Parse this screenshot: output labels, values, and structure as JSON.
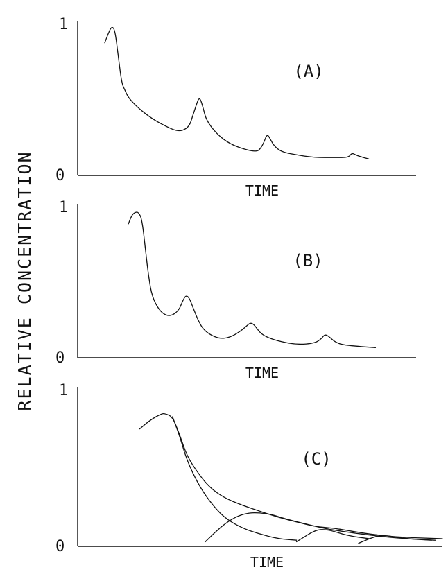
{
  "ylabel": "RELATIVE CONCENTRATION",
  "chart_data": [
    {
      "type": "line",
      "panel_label": "(A)",
      "xlabel": "TIME",
      "y_ticks": [
        "0",
        "1"
      ],
      "ylim": [
        0,
        1
      ],
      "xlim": [
        0,
        100
      ],
      "series": [
        {
          "x": [
            8,
            9,
            10,
            11,
            12,
            13,
            14,
            15,
            18,
            22,
            26,
            29,
            31,
            33,
            34,
            35,
            36,
            37,
            38,
            41,
            45,
            50,
            53,
            54,
            55,
            56,
            57,
            58,
            60,
            64,
            70,
            76,
            80,
            81,
            82,
            83,
            86
          ],
          "y": [
            0.89,
            0.95,
            1.0,
            0.98,
            0.8,
            0.62,
            0.57,
            0.52,
            0.45,
            0.38,
            0.33,
            0.3,
            0.3,
            0.33,
            0.4,
            0.47,
            0.53,
            0.46,
            0.37,
            0.28,
            0.21,
            0.17,
            0.16,
            0.18,
            0.22,
            0.28,
            0.24,
            0.2,
            0.16,
            0.14,
            0.12,
            0.12,
            0.12,
            0.15,
            0.14,
            0.13,
            0.11
          ]
        }
      ]
    },
    {
      "type": "line",
      "panel_label": "(B)",
      "xlabel": "TIME",
      "y_ticks": [
        "0",
        "1"
      ],
      "ylim": [
        0,
        1
      ],
      "xlim": [
        0,
        100
      ],
      "series": [
        {
          "x": [
            15,
            16,
            17,
            18,
            19,
            20,
            21,
            22,
            24,
            26,
            28,
            30,
            31,
            32,
            33,
            34,
            35,
            36,
            37,
            39,
            42,
            45,
            48,
            50,
            51,
            52,
            53,
            54,
            56,
            60,
            65,
            70,
            72,
            73,
            74,
            75,
            76,
            78,
            82,
            88
          ],
          "y": [
            0.92,
            0.98,
            1.0,
            1.0,
            0.95,
            0.75,
            0.55,
            0.42,
            0.33,
            0.29,
            0.29,
            0.33,
            0.39,
            0.43,
            0.41,
            0.35,
            0.29,
            0.24,
            0.2,
            0.16,
            0.13,
            0.14,
            0.18,
            0.22,
            0.24,
            0.23,
            0.2,
            0.17,
            0.14,
            0.11,
            0.09,
            0.1,
            0.13,
            0.16,
            0.15,
            0.13,
            0.11,
            0.09,
            0.08,
            0.07
          ]
        }
      ]
    },
    {
      "type": "line",
      "panel_label": "(C)",
      "xlabel": "TIME",
      "y_ticks": [
        "0",
        "1"
      ],
      "ylim": [
        0,
        1
      ],
      "xlim": [
        0,
        100
      ],
      "series": [
        {
          "x": [
            17,
            20,
            23,
            24,
            26,
            28,
            30,
            33,
            36,
            40,
            45,
            50,
            55,
            60,
            65,
            70,
            75,
            80,
            88,
            100
          ],
          "y": [
            0.77,
            0.83,
            0.87,
            0.87,
            0.85,
            0.73,
            0.59,
            0.48,
            0.39,
            0.32,
            0.27,
            0.23,
            0.19,
            0.16,
            0.13,
            0.12,
            0.1,
            0.08,
            0.06,
            0.05
          ]
        },
        {
          "x": [
            26,
            28,
            30,
            33,
            36,
            40,
            45,
            50,
            55,
            60
          ],
          "y": [
            0.85,
            0.72,
            0.56,
            0.41,
            0.3,
            0.19,
            0.12,
            0.08,
            0.05,
            0.04
          ]
        },
        {
          "x": [
            35,
            38,
            41,
            44,
            47,
            50,
            53,
            57,
            62,
            67,
            72,
            78,
            85,
            90,
            98
          ],
          "y": [
            0.03,
            0.1,
            0.16,
            0.2,
            0.22,
            0.22,
            0.21,
            0.18,
            0.15,
            0.12,
            0.1,
            0.08,
            0.06,
            0.05,
            0.04
          ]
        },
        {
          "x": [
            60,
            62,
            64,
            66,
            68,
            70,
            74,
            80
          ],
          "y": [
            0.03,
            0.06,
            0.09,
            0.11,
            0.11,
            0.1,
            0.07,
            0.05
          ]
        },
        {
          "x": [
            77,
            79,
            81,
            83,
            85,
            90,
            97
          ],
          "y": [
            0.02,
            0.04,
            0.06,
            0.07,
            0.07,
            0.05,
            0.04
          ]
        }
      ]
    }
  ]
}
